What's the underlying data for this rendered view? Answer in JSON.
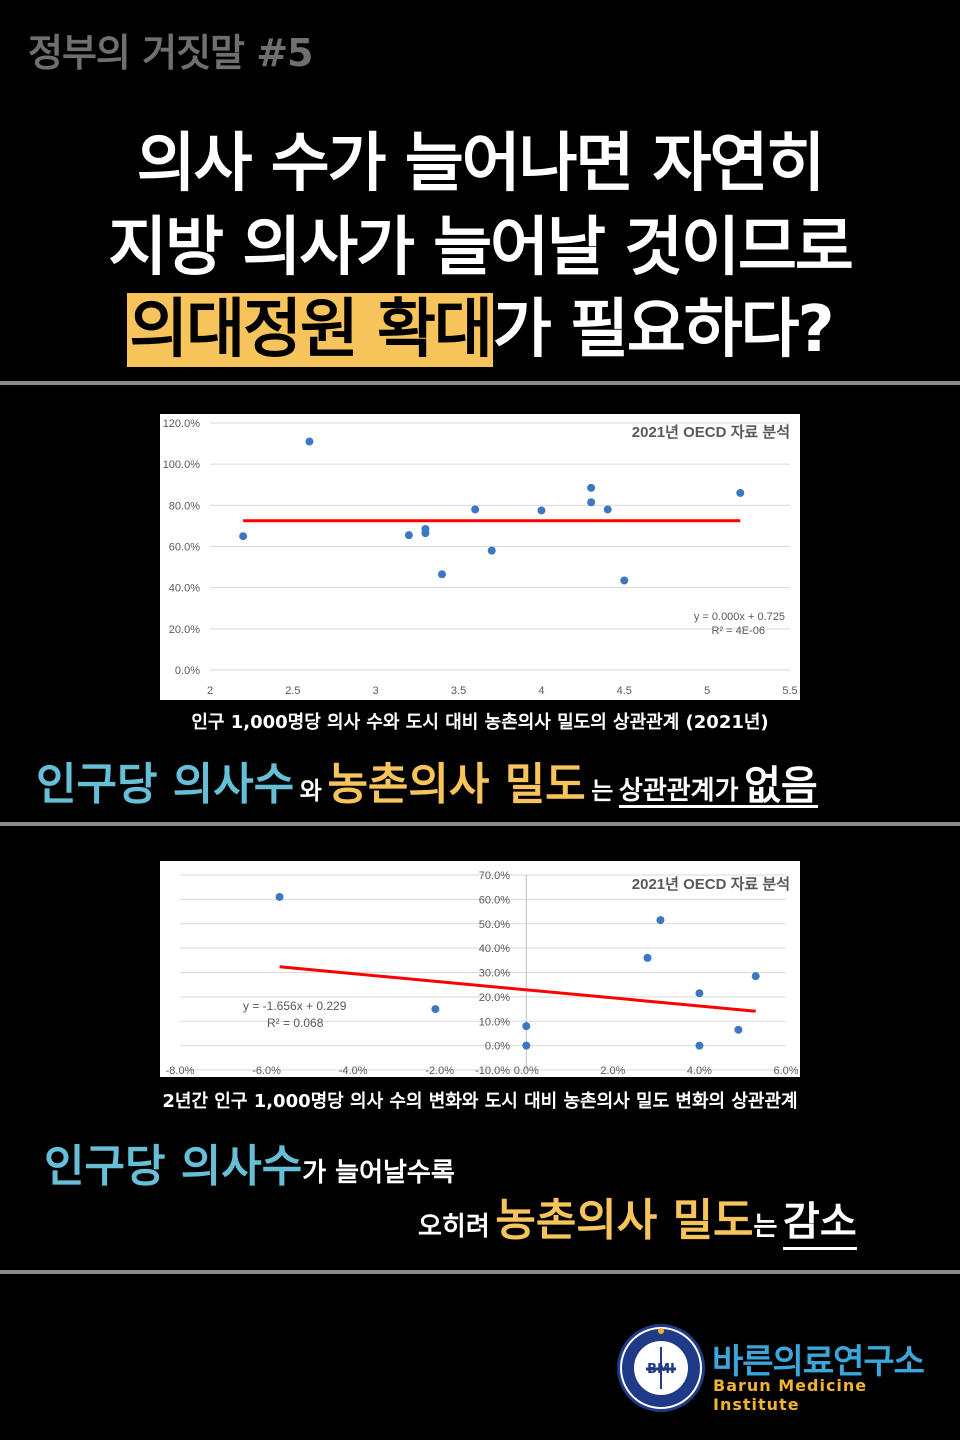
{
  "header": {
    "series_tag": "정부의 거짓말 #5"
  },
  "headline": {
    "line1": "의사 수가 늘어나면 자연히",
    "line2": "지방 의사가 늘어날 것이므로",
    "line3_highlight": "의대정원 확대",
    "line3_rest": "가 필요하다?"
  },
  "colors": {
    "highlight": "#f6c45b",
    "blue": "#67bfd7",
    "trendline": "#ff0000",
    "points": "#3b78c1",
    "divider": "#8a8a8a"
  },
  "chart_data": [
    {
      "type": "scatter",
      "title": "2021년 OECD 자료 분석",
      "x": [
        2.2,
        2.6,
        3.2,
        3.3,
        3.3,
        3.4,
        3.6,
        3.7,
        4.0,
        4.3,
        4.3,
        4.4,
        4.5,
        5.2
      ],
      "y": [
        0.65,
        1.11,
        0.655,
        0.685,
        0.665,
        0.465,
        0.78,
        0.58,
        0.775,
        0.885,
        0.815,
        0.78,
        0.435,
        0.86
      ],
      "xlim": [
        2,
        5.5
      ],
      "ylim": [
        0,
        1.2
      ],
      "x_ticks": [
        "2",
        "2.5",
        "3",
        "3.5",
        "4",
        "4.5",
        "5",
        "5.5"
      ],
      "y_ticks": [
        "0.0%",
        "20.0%",
        "40.0%",
        "60.0%",
        "80.0%",
        "100.0%",
        "120.0%"
      ],
      "trendline": {
        "slope": 0.0,
        "intercept": 0.725,
        "x_range": [
          2.2,
          5.2
        ]
      },
      "annotation_eq": "y = 0.000x + 0.725",
      "annotation_r2": "R² = 4E-06",
      "grid": true
    },
    {
      "type": "scatter",
      "title": "2021년 OECD 자료 분석",
      "x": [
        -0.057,
        -0.021,
        0.0,
        0.0,
        0.028,
        0.031,
        0.04,
        0.04,
        0.049,
        0.053
      ],
      "y": [
        0.61,
        0.15,
        0.08,
        0.0,
        0.36,
        0.515,
        0.215,
        0.0,
        0.065,
        0.285
      ],
      "xlim": [
        -0.08,
        0.06
      ],
      "ylim": [
        -0.1,
        0.7
      ],
      "x_ticks": [
        "-8.0%",
        "-6.0%",
        "-4.0%",
        "-2.0%",
        "0.0%",
        "2.0%",
        "4.0%",
        "6.0%"
      ],
      "y_ticks": [
        "-10.0%",
        "0.0%",
        "10.0%",
        "20.0%",
        "30.0%",
        "40.0%",
        "50.0%",
        "60.0%",
        "70.0%"
      ],
      "trendline": {
        "slope": -1.656,
        "intercept": 0.229,
        "x_range": [
          -0.057,
          0.053
        ]
      },
      "annotation_eq": "y = -1.656x + 0.229",
      "annotation_r2": "R² = 0.068",
      "grid": true
    }
  ],
  "section1": {
    "caption": "인구 1,000명당 의사 수와 도시 대비 농촌의사 밀도의 상관관계 (2021년)",
    "c_blue": "인구당 의사수",
    "c_wa": "와",
    "c_yellow": "농촌의사 밀도",
    "c_neun": "는",
    "c_rel": "상관관계가",
    "c_none": "없음"
  },
  "section2": {
    "caption": "2년간 인구 1,000명당 의사 수의 변화와 도시 대비 농촌의사 밀도 변화의 상관관계",
    "l1_blue": "인구당 의사수",
    "l1_rest": "가 늘어날수록",
    "l2_pre": "오히려",
    "l2_yellow": "농촌의사 밀도",
    "l2_neun": "는",
    "l2_end": "감소"
  },
  "logo": {
    "name_ko": "바른의료연구소",
    "name_en": "Barun Medicine Institute",
    "badge": "BMI",
    "icon": "bmi-emblem-icon"
  }
}
